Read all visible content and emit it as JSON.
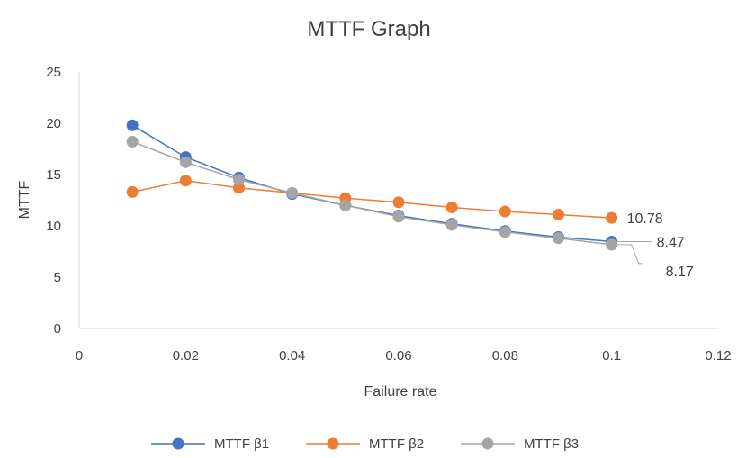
{
  "chart_data": {
    "type": "line",
    "title": "MTTF Graph",
    "xlabel": "Failure rate",
    "ylabel": "MTTF",
    "xlim": [
      0,
      0.12
    ],
    "ylim": [
      0,
      25
    ],
    "x_ticks": [
      "0",
      "0.02",
      "0.04",
      "0.06",
      "0.08",
      "0.1",
      "0.12"
    ],
    "y_ticks": [
      "0",
      "5",
      "10",
      "15",
      "20",
      "25"
    ],
    "grid": false,
    "legend_position": "bottom",
    "x": [
      0.01,
      0.02,
      0.03,
      0.04,
      0.05,
      0.06,
      0.07,
      0.08,
      0.09,
      0.1
    ],
    "series": [
      {
        "name": "MTTF β1",
        "color": "#4472C4",
        "values": [
          19.8,
          16.7,
          14.7,
          13.1,
          12.0,
          11.0,
          10.2,
          9.5,
          8.9,
          8.47
        ]
      },
      {
        "name": "MTTF β2",
        "color": "#ED7D31",
        "values": [
          13.3,
          14.4,
          13.7,
          13.2,
          12.7,
          12.3,
          11.8,
          11.4,
          11.1,
          10.78
        ]
      },
      {
        "name": "MTTF β3",
        "color": "#A5A5A5",
        "values": [
          18.2,
          16.2,
          14.5,
          13.2,
          12.0,
          10.9,
          10.1,
          9.4,
          8.8,
          8.17
        ]
      }
    ],
    "data_labels": [
      {
        "series": 1,
        "text": "10.78"
      },
      {
        "series": 0,
        "text": "8.47"
      },
      {
        "series": 2,
        "text": "8.17"
      }
    ]
  }
}
